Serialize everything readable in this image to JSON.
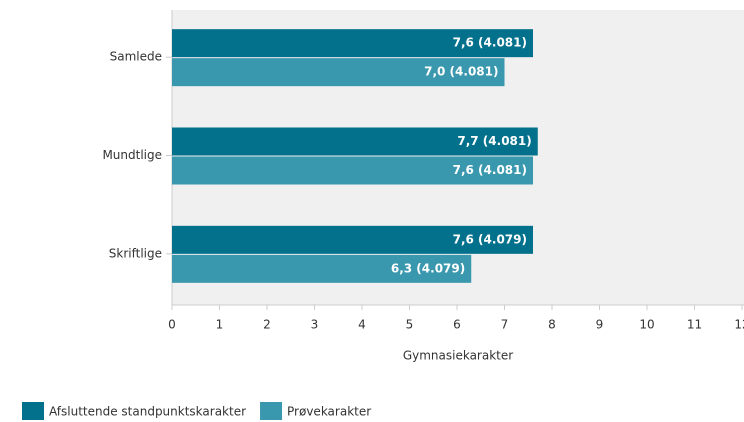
{
  "chart_data": {
    "type": "barh",
    "categories": [
      "Samlede",
      "Mundtlige",
      "Skriftlige"
    ],
    "series": [
      {
        "name": "Afsluttende standpunktskarakter",
        "color": "#03718c",
        "values": [
          7.6,
          7.7,
          7.6
        ],
        "value_labels": [
          "7,6 (4.081)",
          "7,7 (4.081)",
          "7,6 (4.079)"
        ]
      },
      {
        "name": "Prøvekarakter",
        "color": "#3a98ae",
        "values": [
          7.0,
          7.6,
          6.3
        ],
        "value_labels": [
          "7,0 (4.081)",
          "7,6 (4.081)",
          "6,3 (4.079)"
        ]
      }
    ],
    "xlabel": "Gymnasiekarakter",
    "xlim": [
      0,
      12
    ],
    "xticks": [
      0,
      1,
      2,
      3,
      4,
      5,
      6,
      7,
      8,
      9,
      10,
      11,
      12
    ],
    "legend": "bottom-left",
    "grid": false
  }
}
